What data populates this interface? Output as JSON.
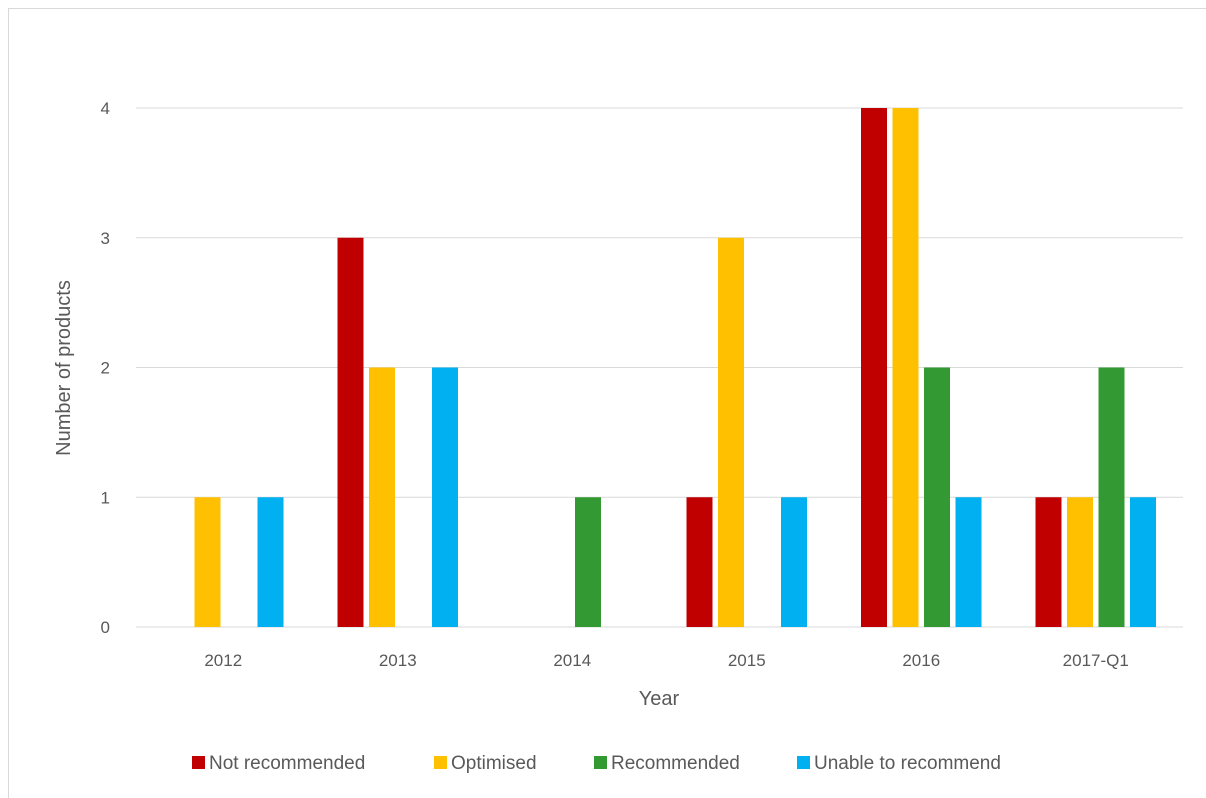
{
  "chart_data": {
    "type": "bar",
    "xlabel": "Year",
    "ylabel": "Number of products",
    "categories": [
      "2012",
      "2013",
      "2014",
      "2015",
      "2016",
      "2017-Q1"
    ],
    "ylim": [
      0,
      4
    ],
    "yticks": [
      "0",
      "1",
      "2",
      "3",
      "4"
    ],
    "grid": true,
    "legend_position": "bottom",
    "series": [
      {
        "name": "Not recommended",
        "color": "#c00000",
        "values": [
          0,
          3,
          0,
          1,
          4,
          1
        ]
      },
      {
        "name": "Optimised",
        "color": "#ffc000",
        "values": [
          1,
          2,
          0,
          3,
          4,
          1
        ]
      },
      {
        "name": "Recommended",
        "color": "#339933",
        "values": [
          0,
          0,
          1,
          0,
          2,
          2
        ]
      },
      {
        "name": "Unable to recommend",
        "color": "#00b0f0",
        "values": [
          1,
          2,
          0,
          1,
          1,
          1
        ]
      }
    ]
  }
}
